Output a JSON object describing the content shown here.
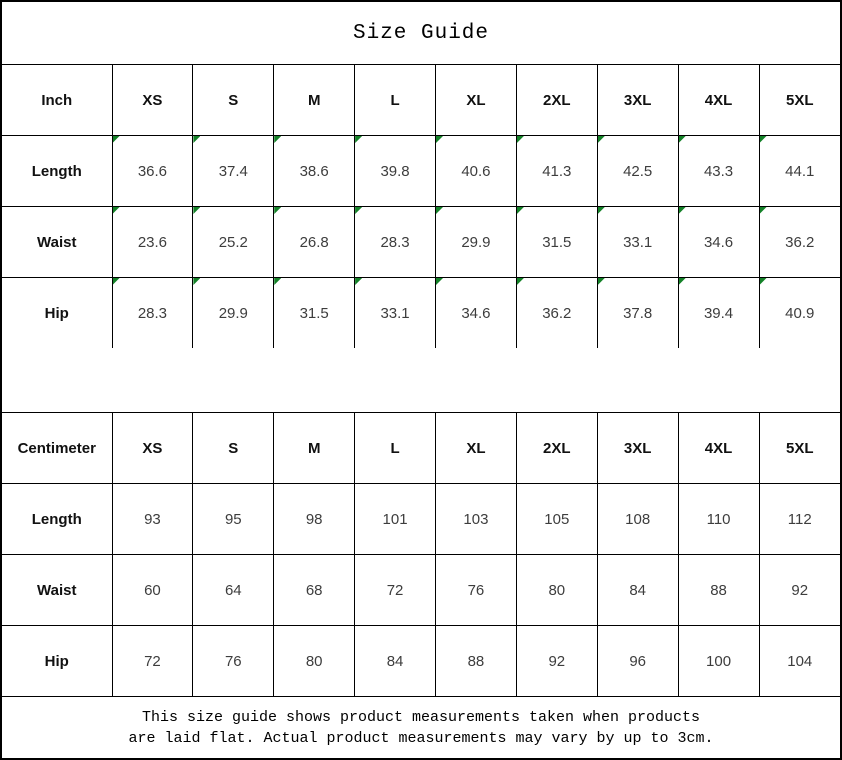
{
  "title": "Size Guide",
  "colors": {
    "flag_green": "#148228",
    "border": "#000000",
    "header_text": "#111111",
    "value_text": "#3d3d3d",
    "background": "#ffffff"
  },
  "chart_data": [
    {
      "type": "table",
      "title": "Size Guide (Inch)",
      "unit": "Inch",
      "flagged": true,
      "columns": [
        "XS",
        "S",
        "M",
        "L",
        "XL",
        "2XL",
        "3XL",
        "4XL",
        "5XL"
      ],
      "rows": [
        {
          "label": "Length",
          "values": [
            "36.6",
            "37.4",
            "38.6",
            "39.8",
            "40.6",
            "41.3",
            "42.5",
            "43.3",
            "44.1"
          ]
        },
        {
          "label": "Waist",
          "values": [
            "23.6",
            "25.2",
            "26.8",
            "28.3",
            "29.9",
            "31.5",
            "33.1",
            "34.6",
            "36.2"
          ]
        },
        {
          "label": "Hip",
          "values": [
            "28.3",
            "29.9",
            "31.5",
            "33.1",
            "34.6",
            "36.2",
            "37.8",
            "39.4",
            "40.9"
          ]
        }
      ]
    },
    {
      "type": "table",
      "title": "Size Guide (Centimeter)",
      "unit": "Centimeter",
      "flagged": false,
      "columns": [
        "XS",
        "S",
        "M",
        "L",
        "XL",
        "2XL",
        "3XL",
        "4XL",
        "5XL"
      ],
      "rows": [
        {
          "label": "Length",
          "values": [
            "93",
            "95",
            "98",
            "101",
            "103",
            "105",
            "108",
            "110",
            "112"
          ]
        },
        {
          "label": "Waist",
          "values": [
            "60",
            "64",
            "68",
            "72",
            "76",
            "80",
            "84",
            "88",
            "92"
          ]
        },
        {
          "label": "Hip",
          "values": [
            "72",
            "76",
            "80",
            "84",
            "88",
            "92",
            "96",
            "100",
            "104"
          ]
        }
      ]
    }
  ],
  "footer": {
    "line1": "This size guide shows product measurements taken when products",
    "line2": "are laid flat. Actual product measurements may vary by up to 3cm."
  }
}
